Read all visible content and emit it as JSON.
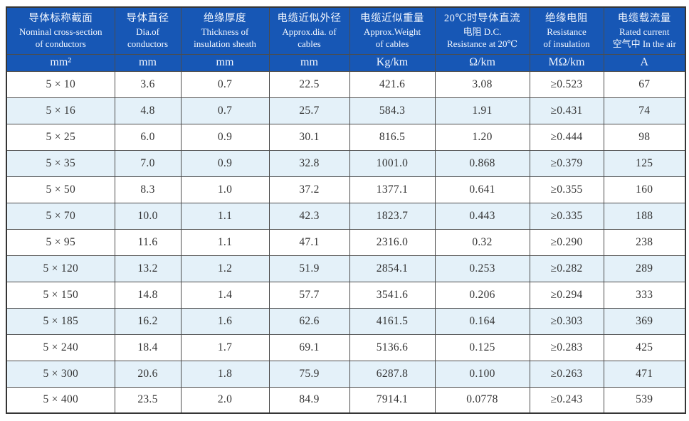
{
  "colors": {
    "header_bg": "#1757b5",
    "header_text": "#f4f8ff",
    "alt_row_bg": "#e4f1f9",
    "grid_line": "#4c4c4c",
    "data_text": "#343434"
  },
  "table": {
    "columns": [
      {
        "line1": "导体标称截面",
        "line2": "Nominal cross-section",
        "line3": "of conductors",
        "unit": "mm²"
      },
      {
        "line1": "导体直径",
        "line2": "Dia.of",
        "line3": "conductors",
        "unit": "mm"
      },
      {
        "line1": "绝缘厚度",
        "line2": "Thickness of",
        "line3": "insulation sheath",
        "unit": "mm"
      },
      {
        "line1": "电缆近似外径",
        "line2": "Approx.dia. of",
        "line3": "cables",
        "unit": "mm"
      },
      {
        "line1": "电缆近似重量",
        "line2": "Approx.Weight",
        "line3": "of cables",
        "unit": "Kg/km"
      },
      {
        "line1": "20℃时导体直流",
        "line2": "电阻 D.C.",
        "line3": "Resistance at 20℃",
        "unit": "Ω/km"
      },
      {
        "line1": "绝缘电阻",
        "line2": "Resistance",
        "line3": "of insulation",
        "unit": "MΩ/km"
      },
      {
        "line1": "电缆载流量",
        "line2": "Rated current",
        "line3": "空气中 In the air",
        "unit": "A"
      }
    ],
    "rows": [
      [
        "5 × 10",
        "3.6",
        "0.7",
        "22.5",
        "421.6",
        "3.08",
        "≥0.523",
        "67"
      ],
      [
        "5 × 16",
        "4.8",
        "0.7",
        "25.7",
        "584.3",
        "1.91",
        "≥0.431",
        "74"
      ],
      [
        "5 × 25",
        "6.0",
        "0.9",
        "30.1",
        "816.5",
        "1.20",
        "≥0.444",
        "98"
      ],
      [
        "5 × 35",
        "7.0",
        "0.9",
        "32.8",
        "1001.0",
        "0.868",
        "≥0.379",
        "125"
      ],
      [
        "5 × 50",
        "8.3",
        "1.0",
        "37.2",
        "1377.1",
        "0.641",
        "≥0.355",
        "160"
      ],
      [
        "5 × 70",
        "10.0",
        "1.1",
        "42.3",
        "1823.7",
        "0.443",
        "≥0.335",
        "188"
      ],
      [
        "5 × 95",
        "11.6",
        "1.1",
        "47.1",
        "2316.0",
        "0.32",
        "≥0.290",
        "238"
      ],
      [
        "5 × 120",
        "13.2",
        "1.2",
        "51.9",
        "2854.1",
        "0.253",
        "≥0.282",
        "289"
      ],
      [
        "5 × 150",
        "14.8",
        "1.4",
        "57.7",
        "3541.6",
        "0.206",
        "≥0.294",
        "333"
      ],
      [
        "5 × 185",
        "16.2",
        "1.6",
        "62.6",
        "4161.5",
        "0.164",
        "≥0.303",
        "369"
      ],
      [
        "5 × 240",
        "18.4",
        "1.7",
        "69.1",
        "5136.6",
        "0.125",
        "≥0.283",
        "425"
      ],
      [
        "5 × 300",
        "20.6",
        "1.8",
        "75.9",
        "6287.8",
        "0.100",
        "≥0.263",
        "471"
      ],
      [
        "5 × 400",
        "23.5",
        "2.0",
        "84.9",
        "7914.1",
        "0.0778",
        "≥0.243",
        "539"
      ]
    ]
  }
}
